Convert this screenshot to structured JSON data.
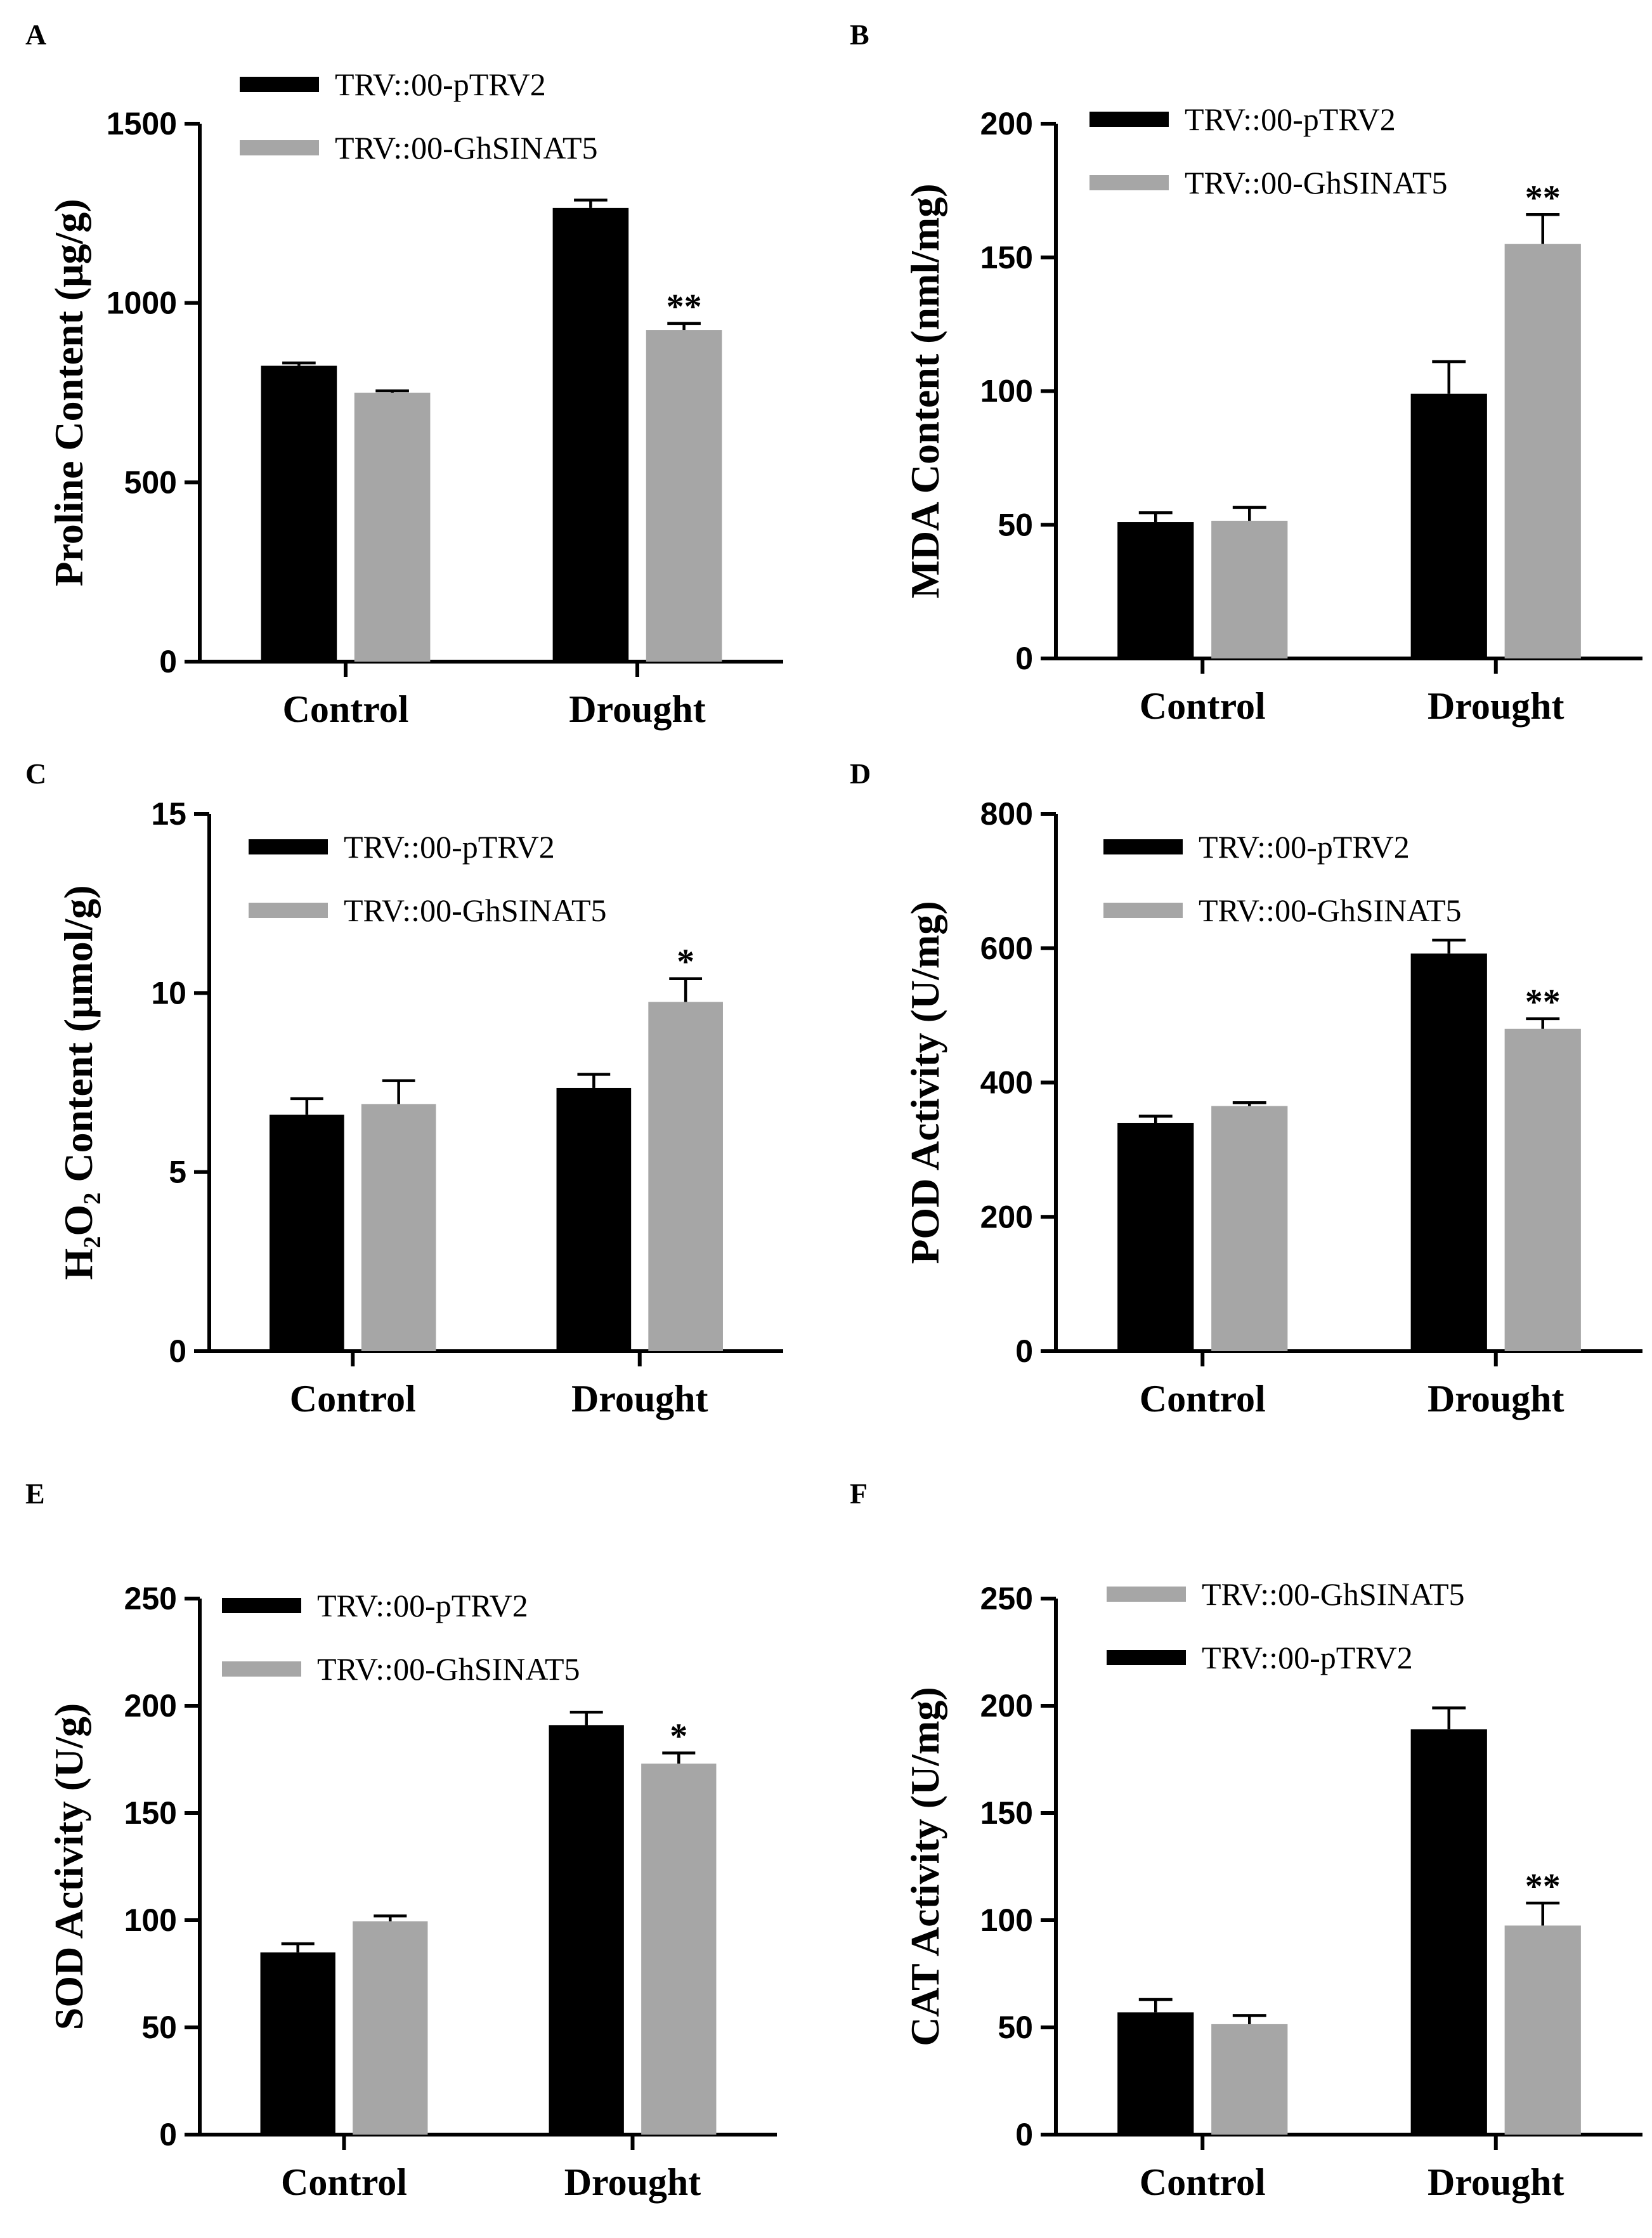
{
  "colors": {
    "pTRV2": "#000000",
    "GhSINAT5": "#a6a6a6"
  },
  "chart_data": [
    {
      "type": "bar",
      "panel": "A",
      "categories": [
        "Control",
        "Drought"
      ],
      "ylabel": "Proline Content (μg/g)",
      "ylim": [
        0,
        1500
      ],
      "yticks": [
        0,
        500,
        1000,
        1500
      ],
      "legend": [
        "TRV::00-pTRV2",
        "TRV::00-GhSINAT5"
      ],
      "series": [
        {
          "name": "TRV::00-pTRV2",
          "key": "pTRV2",
          "values": [
            825,
            1265
          ],
          "errors": [
            8,
            22
          ],
          "sig": [
            "",
            ""
          ]
        },
        {
          "name": "TRV::00-GhSINAT5",
          "key": "GhSINAT5",
          "values": [
            750,
            925
          ],
          "errors": [
            5,
            18
          ],
          "sig": [
            "",
            "**"
          ]
        }
      ]
    },
    {
      "type": "bar",
      "panel": "B",
      "categories": [
        "Control",
        "Drought"
      ],
      "ylabel": "MDA Content (nml/mg)",
      "ylim": [
        0,
        200
      ],
      "yticks": [
        0,
        50,
        100,
        150,
        200
      ],
      "legend": [
        "TRV::00-pTRV2",
        "TRV::00-GhSINAT5"
      ],
      "series": [
        {
          "name": "TRV::00-pTRV2",
          "key": "pTRV2",
          "values": [
            51,
            99
          ],
          "errors": [
            3.5,
            12
          ],
          "sig": [
            "",
            ""
          ]
        },
        {
          "name": "TRV::00-GhSINAT5",
          "key": "GhSINAT5",
          "values": [
            51.5,
            155
          ],
          "errors": [
            5,
            11
          ],
          "sig": [
            "",
            "**"
          ]
        }
      ]
    },
    {
      "type": "bar",
      "panel": "C",
      "categories": [
        "Control",
        "Drought"
      ],
      "ylabel": "H₂O₂ Content (μmol/g)",
      "ylim": [
        0,
        15
      ],
      "yticks": [
        0,
        5,
        10,
        15
      ],
      "legend": [
        "TRV::00-pTRV2",
        "TRV::00-GhSINAT5"
      ],
      "series": [
        {
          "name": "TRV::00-pTRV2",
          "key": "pTRV2",
          "values": [
            6.6,
            7.35
          ],
          "errors": [
            0.45,
            0.38
          ],
          "sig": [
            "",
            ""
          ]
        },
        {
          "name": "TRV::00-GhSINAT5",
          "key": "GhSINAT5",
          "values": [
            6.9,
            9.75
          ],
          "errors": [
            0.65,
            0.65
          ],
          "sig": [
            "",
            "*"
          ]
        }
      ]
    },
    {
      "type": "bar",
      "panel": "D",
      "categories": [
        "Control",
        "Drought"
      ],
      "ylabel": "POD Activity (U/mg)",
      "ylim": [
        0,
        800
      ],
      "yticks": [
        0,
        200,
        400,
        600,
        800
      ],
      "legend": [
        "TRV::00-pTRV2",
        "TRV::00-GhSINAT5"
      ],
      "series": [
        {
          "name": "TRV::00-pTRV2",
          "key": "pTRV2",
          "values": [
            340,
            592
          ],
          "errors": [
            10,
            20
          ],
          "sig": [
            "",
            ""
          ]
        },
        {
          "name": "TRV::00-GhSINAT5",
          "key": "GhSINAT5",
          "values": [
            365,
            480
          ],
          "errors": [
            5,
            15
          ],
          "sig": [
            "",
            "**"
          ]
        }
      ]
    },
    {
      "type": "bar",
      "panel": "E",
      "categories": [
        "Control",
        "Drought"
      ],
      "ylabel": "SOD Activity (U/g)",
      "ylim": [
        0,
        250
      ],
      "yticks": [
        0,
        50,
        100,
        150,
        200,
        250
      ],
      "legend": [
        "TRV::00-pTRV2",
        "TRV::00-GhSINAT5"
      ],
      "series": [
        {
          "name": "TRV::00-pTRV2",
          "key": "pTRV2",
          "values": [
            85,
            191
          ],
          "errors": [
            4,
            6
          ],
          "sig": [
            "",
            ""
          ]
        },
        {
          "name": "TRV::00-GhSINAT5",
          "key": "GhSINAT5",
          "values": [
            99.5,
            173
          ],
          "errors": [
            2.5,
            5
          ],
          "sig": [
            "",
            "*"
          ]
        }
      ]
    },
    {
      "type": "bar",
      "panel": "F",
      "categories": [
        "Control",
        "Drought"
      ],
      "ylabel": "CAT Activity (U/mg)",
      "ylim": [
        0,
        250
      ],
      "yticks": [
        0,
        50,
        100,
        150,
        200,
        250
      ],
      "legend": [
        "TRV::00-GhSINAT5",
        "TRV::00-pTRV2"
      ],
      "series": [
        {
          "name": "TRV::00-pTRV2",
          "key": "pTRV2",
          "values": [
            57,
            189
          ],
          "errors": [
            6,
            10
          ],
          "sig": [
            "",
            ""
          ]
        },
        {
          "name": "TRV::00-GhSINAT5",
          "key": "GhSINAT5",
          "values": [
            51.5,
            97.5
          ],
          "errors": [
            4,
            10.5
          ],
          "sig": [
            "",
            "**"
          ]
        }
      ]
    }
  ]
}
